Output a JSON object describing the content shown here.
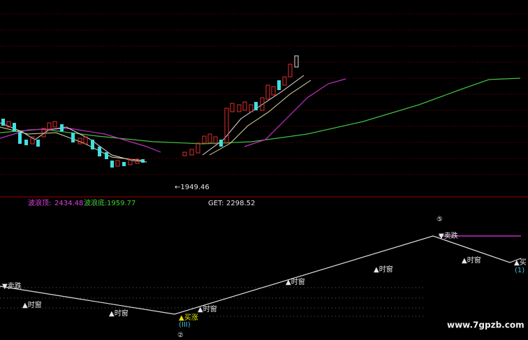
{
  "upper": {
    "low_marker": "←1949.46",
    "wave_top": {
      "label": "波浪顶:",
      "value": "2434.48"
    },
    "wave_bottom": {
      "label": "波浪底:",
      "value": "1959.77"
    },
    "get": {
      "label": "GET:",
      "value": "2298.52"
    }
  },
  "lower": {
    "wave_five": "⑤",
    "wave_two": "②",
    "sell_labels": [
      "▼卖跌",
      "▼卖跌"
    ],
    "window_labels": [
      "▲时窗",
      "▲时窗",
      "▲时窗",
      "▲时窗",
      "▲时窗",
      "▲时窗"
    ],
    "buy_label": "▲买涨",
    "buy_wave": "(III)",
    "buy_right": "▲买",
    "right_wave": "(1)"
  },
  "watermark": "www.7gpzb.com"
}
